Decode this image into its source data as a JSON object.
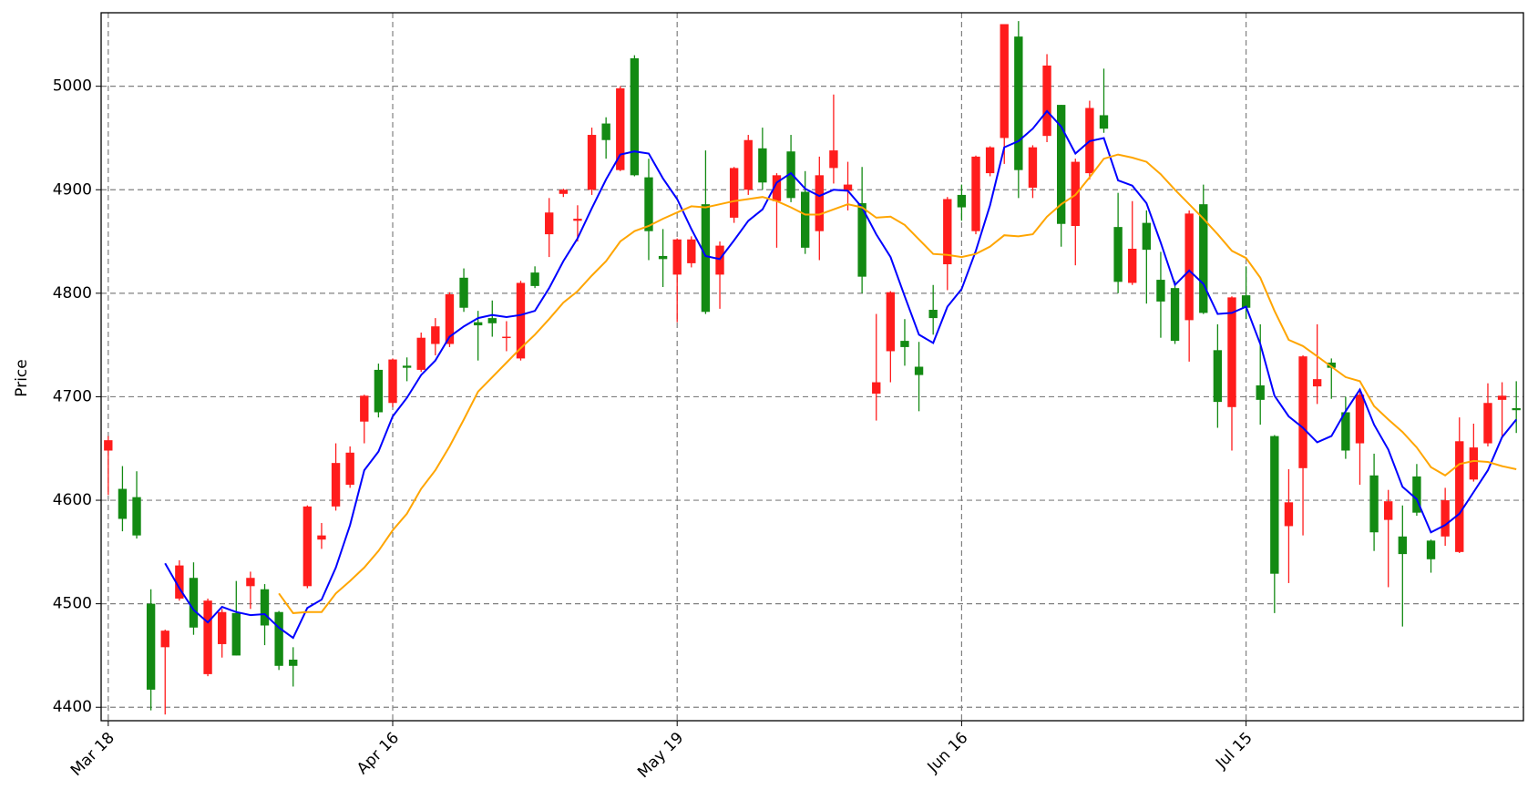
{
  "chart_data": {
    "type": "candlestick",
    "y_label": "Price",
    "categories": [
      "Mar 18",
      null,
      null,
      null,
      null,
      null,
      null,
      null,
      null,
      null,
      null,
      null,
      null,
      null,
      null,
      null,
      null,
      null,
      null,
      null,
      "Apr 16",
      null,
      null,
      null,
      null,
      null,
      null,
      null,
      null,
      null,
      null,
      null,
      null,
      null,
      null,
      null,
      null,
      null,
      null,
      null,
      "May 19",
      null,
      null,
      null,
      null,
      null,
      null,
      null,
      null,
      null,
      null,
      null,
      null,
      null,
      null,
      null,
      null,
      null,
      null,
      null,
      "Jun 16",
      null,
      null,
      null,
      null,
      null,
      null,
      null,
      null,
      null,
      null,
      null,
      null,
      null,
      null,
      null,
      null,
      null,
      null,
      null,
      "Jul 15",
      null,
      null,
      null,
      null,
      null,
      null,
      null,
      null,
      null,
      null,
      null,
      null,
      null,
      null,
      null,
      null,
      null,
      null,
      null
    ],
    "open": [
      4648,
      4611,
      4603,
      4500,
      4458,
      4505,
      4525,
      4432,
      4461,
      4491,
      4517,
      4514,
      4492,
      4446,
      4517,
      4562,
      4594,
      4615,
      4676,
      4726,
      4694,
      4730,
      4726,
      4751,
      4751,
      4815,
      4772,
      4776,
      4757,
      4737,
      4820,
      4857,
      4896,
      4870,
      4900,
      4964,
      4919,
      5027,
      4912,
      4836,
      4818,
      4829,
      4886,
      4818,
      4873,
      4900,
      4940,
      4889,
      4937,
      4898,
      4860,
      4921,
      4899,
      4887,
      4703,
      4744,
      4754,
      4729,
      4784,
      4828,
      4895,
      4860,
      4916,
      4950,
      5048,
      4902,
      4952,
      4982,
      4865,
      4916,
      4972,
      4864,
      4810,
      4868,
      4813,
      4805,
      4774,
      4886,
      4745,
      4690,
      4798,
      4711,
      4662,
      4575,
      4631,
      4710,
      4733,
      4685,
      4655,
      4624,
      4581,
      4565,
      4623,
      4561,
      4565,
      4550,
      4620,
      4655,
      4697,
      4689
    ],
    "high": [
      4662,
      4633,
      4628,
      4514,
      4475,
      4542,
      4540,
      4505,
      4495,
      4522,
      4531,
      4519,
      4493,
      4458,
      4595,
      4578,
      4655,
      4652,
      4702,
      4732,
      4737,
      4738,
      4762,
      4776,
      4801,
      4824,
      4783,
      4793,
      4773,
      4812,
      4826,
      4892,
      4901,
      4885,
      4960,
      4970,
      5000,
      5030,
      4930,
      4862,
      4853,
      4855,
      4938,
      4850,
      4922,
      4953,
      4960,
      4916,
      4953,
      4918,
      4932,
      4992,
      4927,
      4922,
      4780,
      4802,
      4775,
      4753,
      4808,
      4893,
      4905,
      4933,
      4942,
      5060,
      5063,
      4943,
      5031,
      4982,
      4930,
      4986,
      5017,
      4897,
      4889,
      4880,
      4840,
      4812,
      4880,
      4905,
      4770,
      4797,
      4826,
      4770,
      4663,
      4630,
      4740,
      4770,
      4737,
      4700,
      4705,
      4645,
      4610,
      4595,
      4635,
      4562,
      4612,
      4680,
      4674,
      4713,
      4714,
      4715
    ],
    "low": [
      4605,
      4570,
      4563,
      4397,
      4393,
      4503,
      4470,
      4430,
      4448,
      4450,
      4495,
      4460,
      4436,
      4420,
      4515,
      4553,
      4590,
      4612,
      4655,
      4680,
      4690,
      4715,
      4724,
      4740,
      4748,
      4782,
      4735,
      4758,
      4744,
      4735,
      4805,
      4835,
      4893,
      4850,
      4895,
      4930,
      4918,
      4913,
      4832,
      4806,
      4772,
      4825,
      4780,
      4785,
      4868,
      4895,
      4900,
      4844,
      4888,
      4838,
      4832,
      4906,
      4880,
      4800,
      4677,
      4714,
      4730,
      4686,
      4760,
      4803,
      4870,
      4857,
      4913,
      4925,
      4892,
      4892,
      4946,
      4845,
      4827,
      4910,
      4955,
      4800,
      4808,
      4790,
      4757,
      4751,
      4734,
      4780,
      4670,
      4648,
      4775,
      4673,
      4491,
      4520,
      4566,
      4693,
      4698,
      4640,
      4615,
      4551,
      4516,
      4478,
      4585,
      4530,
      4556,
      4549,
      4618,
      4652,
      4660,
      4665
    ],
    "close": [
      4658,
      4582,
      4566,
      4417,
      4474,
      4537,
      4477,
      4503,
      4492,
      4450,
      4525,
      4479,
      4440,
      4440,
      4594,
      4566,
      4636,
      4646,
      4701,
      4685,
      4736,
      4728,
      4757,
      4768,
      4799,
      4786,
      4769,
      4771,
      4758,
      4810,
      4807,
      4878,
      4900,
      4872,
      4953,
      4948,
      4998,
      4914,
      4860,
      4833,
      4852,
      4852,
      4782,
      4846,
      4921,
      4948,
      4907,
      4914,
      4892,
      4844,
      4914,
      4938,
      4905,
      4816,
      4714,
      4801,
      4748,
      4721,
      4776,
      4891,
      4883,
      4932,
      4941,
      5060,
      4919,
      4941,
      5020,
      4867,
      4927,
      4979,
      4959,
      4811,
      4843,
      4842,
      4792,
      4754,
      4877,
      4781,
      4695,
      4796,
      4786,
      4697,
      4529,
      4598,
      4739,
      4717,
      4728,
      4648,
      4702,
      4569,
      4599,
      4548,
      4588,
      4543,
      4600,
      4657,
      4651,
      4694,
      4701,
      4687
    ],
    "up_color": "#ff1c1c",
    "down_color": "#138a13",
    "lines": [
      {
        "color": "#0000ff",
        "values": [
          null,
          null,
          null,
          null,
          4539,
          4515,
          4494,
          4482,
          4497,
          4492,
          4489,
          4490,
          4477,
          4467,
          4496,
          4504,
          4535,
          4576,
          4629,
          4647,
          4681,
          4699,
          4721,
          4735,
          4758,
          4768,
          4776,
          4779,
          4777,
          4779,
          4783,
          4805,
          4831,
          4853,
          4882,
          4910,
          4934,
          4937,
          4935,
          4911,
          4891,
          4862,
          4836,
          4833,
          4851,
          4870,
          4881,
          4907,
          4916,
          4901,
          4894,
          4900,
          4899,
          4883,
          4857,
          4835,
          4797,
          4760,
          4752,
          4787,
          4804,
          4841,
          4885,
          4941,
          4947,
          4959,
          4976,
          4961,
          4935,
          4947,
          4950,
          4909,
          4904,
          4887,
          4849,
          4808,
          4822,
          4809,
          4780,
          4781,
          4787,
          4751,
          4701,
          4681,
          4670,
          4656,
          4662,
          4686,
          4707,
          4673,
          4649,
          4613,
          4601,
          4569,
          4576,
          4587,
          4608,
          4629,
          4661,
          4678
        ]
      },
      {
        "color": "#ffa500",
        "values": [
          null,
          null,
          null,
          null,
          null,
          null,
          null,
          null,
          null,
          null,
          null,
          null,
          4510,
          4491,
          4492,
          4492,
          4510,
          4522,
          4535,
          4551,
          4571,
          4587,
          4611,
          4629,
          4652,
          4678,
          4705,
          4719,
          4733,
          4747,
          4760,
          4775,
          4791,
          4802,
          4817,
          4831,
          4850,
          4860,
          4865,
          4872,
          4878,
          4884,
          4883,
          4886,
          4889,
          4891,
          4893,
          4889,
          4883,
          4876,
          4876,
          4881,
          4886,
          4883,
          4873,
          4874,
          4866,
          4852,
          4838,
          4837,
          4835,
          4838,
          4845,
          4856,
          4855,
          4857,
          4874,
          4886,
          4895,
          4912,
          4930,
          4934,
          4931,
          4927,
          4915,
          4900,
          4886,
          4872,
          4857,
          4841,
          4834,
          4815,
          4783,
          4755,
          4749,
          4739,
          4729,
          4719,
          4715,
          4691,
          4678,
          4666,
          4651,
          4632,
          4624,
          4635,
          4638,
          4637,
          4633,
          4630
        ]
      }
    ],
    "xlim": [
      -0.5,
      99.5
    ],
    "ylim": [
      4387,
      5071
    ],
    "yticks": [
      4400,
      4500,
      4600,
      4700,
      4800,
      4900,
      5000
    ],
    "grid": true
  }
}
